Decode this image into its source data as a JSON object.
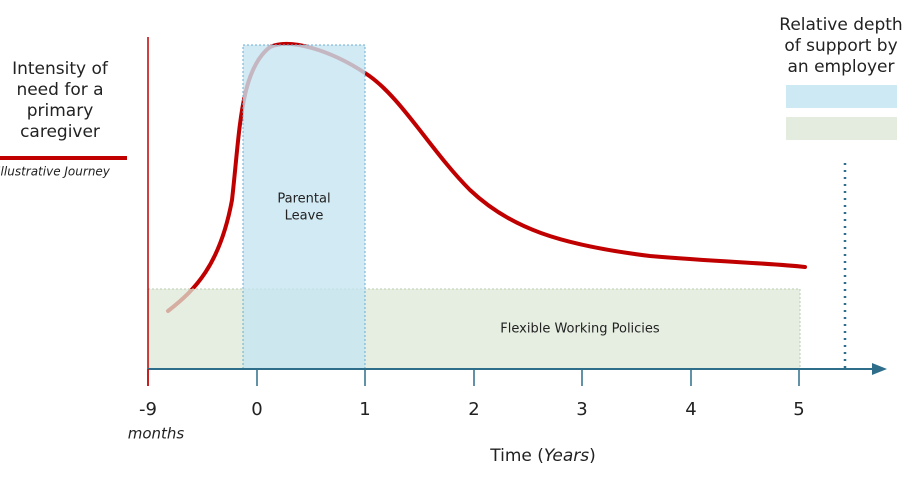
{
  "y_label": {
    "lines": [
      "Intensity of",
      "need for a",
      "primary",
      "caregiver"
    ]
  },
  "legend": {
    "line_label": "Illustrative Journey",
    "support_title": {
      "lines": [
        "Relative depth",
        "of support by",
        "an employer"
      ]
    }
  },
  "boxes": {
    "parental_leave": {
      "lines": [
        "Parental",
        "Leave"
      ]
    },
    "flexible_working": {
      "label": "Flexible Working Policies"
    }
  },
  "x_axis": {
    "ticks": [
      "-9",
      "0",
      "1",
      "2",
      "3",
      "4",
      "5"
    ],
    "first_tick_unit": "months",
    "title": {
      "before": "Time (",
      "italic": "Years",
      "after": ")"
    }
  }
}
